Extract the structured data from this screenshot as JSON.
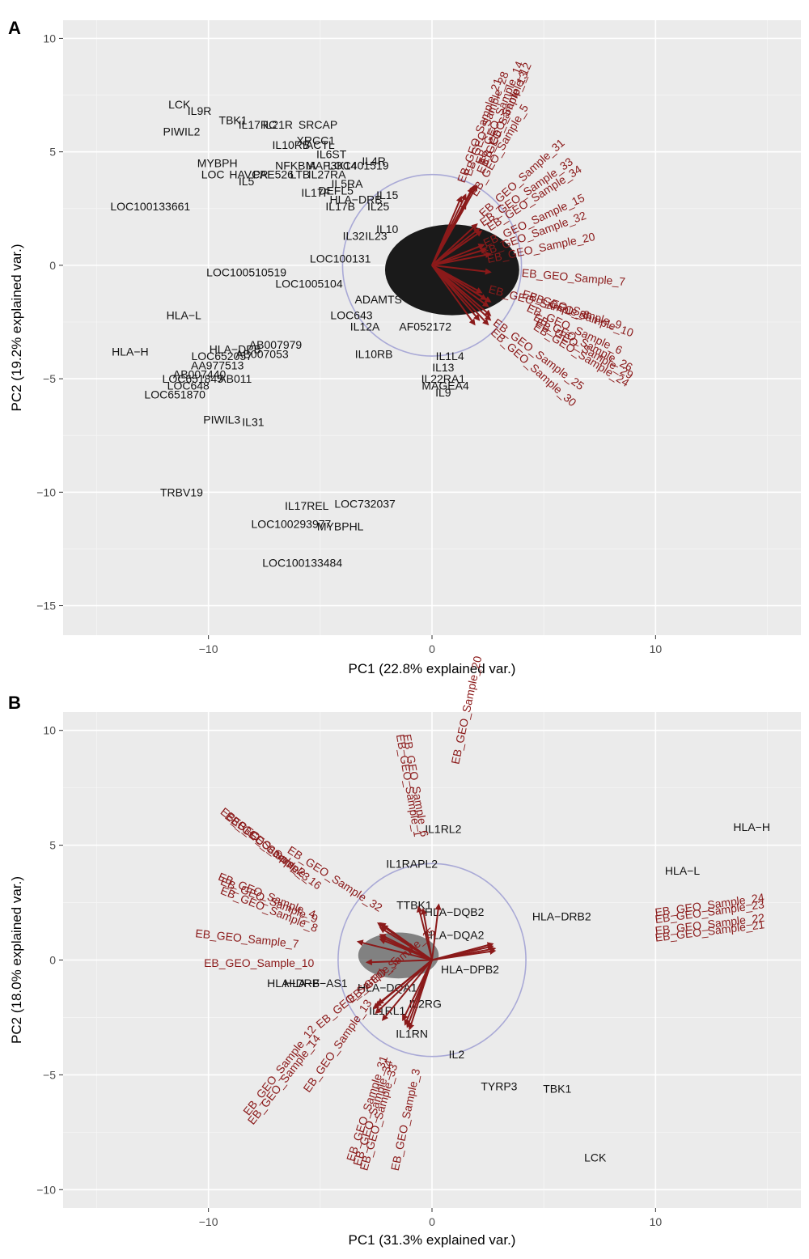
{
  "panels": [
    {
      "letter": "A",
      "chart_data": {
        "type": "scatter",
        "subtype": "pca-biplot",
        "xlabel": "PC1 (22.8% explained var.)",
        "ylabel": "PC2 (19.2% explained var.)",
        "xlim": [
          -16.5,
          16.5
        ],
        "ylim": [
          -16.3,
          10.8
        ],
        "xticks": [
          -10,
          0,
          10
        ],
        "yticks": [
          10,
          5,
          0,
          -5,
          -10,
          -15
        ],
        "grid": true,
        "circle": {
          "cx": 0,
          "cy": 0,
          "r": 4.0
        },
        "gene_labels": [
          {
            "label": "LCK",
            "x": -11.3,
            "y": 7.1
          },
          {
            "label": "IL9R",
            "x": -10.4,
            "y": 6.8
          },
          {
            "label": "TBK1",
            "x": -8.9,
            "y": 6.4
          },
          {
            "label": "IL17RC",
            "x": -7.8,
            "y": 6.2
          },
          {
            "label": "IL21R",
            "x": -6.9,
            "y": 6.2
          },
          {
            "label": "SRCAP",
            "x": -5.1,
            "y": 6.2
          },
          {
            "label": "PIWIL2",
            "x": -11.2,
            "y": 5.9
          },
          {
            "label": "XRCC1",
            "x": -5.2,
            "y": 5.5
          },
          {
            "label": "IL10RB",
            "x": -6.3,
            "y": 5.3
          },
          {
            "label": "ACTL",
            "x": -5.0,
            "y": 5.3
          },
          {
            "label": "IL6ST",
            "x": -4.5,
            "y": 4.9
          },
          {
            "label": "MYBPH",
            "x": -9.6,
            "y": 4.5
          },
          {
            "label": "NFKBIA",
            "x": -6.1,
            "y": 4.4
          },
          {
            "label": "MAP3K14",
            "x": -4.5,
            "y": 4.4
          },
          {
            "label": "LOC401519",
            "x": -3.3,
            "y": 4.4
          },
          {
            "label": "LOC",
            "x": -9.8,
            "y": 4.0
          },
          {
            "label": "HAVCR",
            "x": -8.2,
            "y": 4.0
          },
          {
            "label": "PAE526",
            "x": -7.1,
            "y": 4.0
          },
          {
            "label": "LTB",
            "x": -5.9,
            "y": 4.0
          },
          {
            "label": "IL27RA",
            "x": -4.7,
            "y": 4.0
          },
          {
            "label": "IL5",
            "x": -8.3,
            "y": 3.7
          },
          {
            "label": "IL5RA",
            "x": -3.8,
            "y": 3.6
          },
          {
            "label": "IL4R",
            "x": -2.6,
            "y": 4.6
          },
          {
            "label": "IL17F",
            "x": -5.2,
            "y": 3.2
          },
          {
            "label": "DEFL5",
            "x": -4.3,
            "y": 3.3
          },
          {
            "label": "IL15",
            "x": -2.0,
            "y": 3.1
          },
          {
            "label": "IL17B",
            "x": -4.1,
            "y": 2.6
          },
          {
            "label": "HLA-DRB",
            "x": -3.4,
            "y": 2.9
          },
          {
            "label": "IL25",
            "x": -2.4,
            "y": 2.6
          },
          {
            "label": "LOC100133661",
            "x": -12.6,
            "y": 2.6
          },
          {
            "label": "IL32",
            "x": -3.5,
            "y": 1.3
          },
          {
            "label": "IL23",
            "x": -2.5,
            "y": 1.3
          },
          {
            "label": "IL10",
            "x": -2.0,
            "y": 1.6
          },
          {
            "label": "LOC100131",
            "x": -4.1,
            "y": 0.3
          },
          {
            "label": "LOC100510519",
            "x": -8.3,
            "y": -0.3
          },
          {
            "label": "LOC1005104",
            "x": -5.5,
            "y": -0.8
          },
          {
            "label": "ADAMTS",
            "x": -2.4,
            "y": -1.5
          },
          {
            "label": "HLA-L",
            "x": -11.1,
            "y": -2.2
          },
          {
            "label": "LOC643",
            "x": -3.6,
            "y": -2.2
          },
          {
            "label": "IL12A",
            "x": -3.0,
            "y": -2.7
          },
          {
            "label": "AF052172",
            "x": -0.3,
            "y": -2.7
          },
          {
            "label": "AB007979",
            "x": -7.0,
            "y": -3.5
          },
          {
            "label": "HLA-DPB",
            "x": -8.8,
            "y": -3.7
          },
          {
            "label": "AB007053",
            "x": -7.6,
            "y": -3.9
          },
          {
            "label": "LOC652057",
            "x": -9.4,
            "y": -4.0
          },
          {
            "label": "HLA-H",
            "x": -13.5,
            "y": -3.8
          },
          {
            "label": "IL10RB",
            "x": -2.6,
            "y": -3.9
          },
          {
            "label": "AA977513",
            "x": -9.6,
            "y": -4.4
          },
          {
            "label": "AB007440",
            "x": -10.4,
            "y": -4.8
          },
          {
            "label": "LOC651845",
            "x": -10.7,
            "y": -5.0
          },
          {
            "label": "AB011",
            "x": -8.8,
            "y": -5.0
          },
          {
            "label": "LOC648",
            "x": -10.9,
            "y": -5.3
          },
          {
            "label": "LOC651870",
            "x": -11.5,
            "y": -5.7
          },
          {
            "label": "IL1L4",
            "x": 0.8,
            "y": -4.0
          },
          {
            "label": "IL13",
            "x": 0.5,
            "y": -4.5
          },
          {
            "label": "IL22RA1",
            "x": 0.5,
            "y": -5.0
          },
          {
            "label": "MAGEA4",
            "x": 0.6,
            "y": -5.3
          },
          {
            "label": "IL9",
            "x": 0.5,
            "y": -5.6
          },
          {
            "label": "PIWIL3",
            "x": -9.4,
            "y": -6.8
          },
          {
            "label": "IL31",
            "x": -8.0,
            "y": -6.9
          },
          {
            "label": "TRBV19",
            "x": -11.2,
            "y": -10.0
          },
          {
            "label": "LOC732037",
            "x": -3.0,
            "y": -10.5
          },
          {
            "label": "IL17REL",
            "x": -5.6,
            "y": -10.6
          },
          {
            "label": "LOC100293977",
            "x": -6.3,
            "y": -11.4
          },
          {
            "label": "MYBPHL",
            "x": -4.1,
            "y": -11.5
          },
          {
            "label": "LOC100133484",
            "x": -5.8,
            "y": -13.1
          }
        ],
        "samples": [
          {
            "name": "EB_GEO_Sample_21",
            "x": 1.3,
            "y": 3.0,
            "text_x": 1.45,
            "text_y": 3.6,
            "angle": -70
          },
          {
            "name": "EB_GEO_Sample_28",
            "x": 1.5,
            "y": 3.1,
            "text_x": 1.75,
            "text_y": 3.9,
            "angle": -70
          },
          {
            "name": "EB_GEO_Sample_14",
            "x": 1.9,
            "y": 3.5,
            "text_x": 2.25,
            "text_y": 4.4,
            "angle": -68
          },
          {
            "name": "EB_GEO_Sample_12",
            "x": 2.0,
            "y": 3.5,
            "text_x": 2.45,
            "text_y": 4.4,
            "angle": -66
          },
          {
            "name": "EB_GEO_Sample_13",
            "x": 1.8,
            "y": 3.4,
            "text_x": 2.3,
            "text_y": 4.0,
            "angle": -66
          },
          {
            "name": "EB_GEO_Sample_5",
            "x": 1.5,
            "y": 2.7,
            "text_x": 2.0,
            "text_y": 3.0,
            "angle": -60
          },
          {
            "name": "EB_GEO_Sample_31",
            "x": 2.0,
            "y": 1.8,
            "text_x": 2.3,
            "text_y": 2.1,
            "angle": -42
          },
          {
            "name": "EB_GEO_Sample_33",
            "x": 2.1,
            "y": 1.6,
            "text_x": 2.3,
            "text_y": 1.7,
            "angle": -35
          },
          {
            "name": "EB_GEO_Sample_34",
            "x": 2.2,
            "y": 1.5,
            "text_x": 2.6,
            "text_y": 1.5,
            "angle": -33
          },
          {
            "name": "EB_GEO_Sample_15",
            "x": 2.3,
            "y": 0.9,
            "text_x": 2.4,
            "text_y": 0.8,
            "angle": -25
          },
          {
            "name": "EB_GEO_Sample_32",
            "x": 2.4,
            "y": 0.7,
            "text_x": 2.3,
            "text_y": 0.4,
            "angle": -20
          },
          {
            "name": "EB_GEO_Sample_20",
            "x": 2.6,
            "y": 0.5,
            "text_x": 2.5,
            "text_y": 0.1,
            "angle": -12
          },
          {
            "name": "EB_GEO_Sample_7",
            "x": 2.6,
            "y": -0.3,
            "text_x": 4.0,
            "text_y": -0.5,
            "angle": 5
          },
          {
            "name": "EB_GEO_Sample_8",
            "x": 2.2,
            "y": -1.2,
            "text_x": 2.5,
            "text_y": -1.2,
            "angle": 15
          },
          {
            "name": "EB_GEO_Sample_9",
            "x": 2.4,
            "y": -1.5,
            "text_x": 4.0,
            "text_y": -1.4,
            "angle": 18
          },
          {
            "name": "EB_GEO_Sample_10",
            "x": 2.6,
            "y": -1.6,
            "text_x": 4.3,
            "text_y": -1.5,
            "angle": 20
          },
          {
            "name": "EB_GEO_Sample_6",
            "x": 2.5,
            "y": -1.8,
            "text_x": 4.2,
            "text_y": -2.0,
            "angle": 25
          },
          {
            "name": "EB_GEO_Sample_26",
            "x": 2.6,
            "y": -2.2,
            "text_x": 4.5,
            "text_y": -2.4,
            "angle": 28
          },
          {
            "name": "EB_GEO_Sample_29",
            "x": 2.6,
            "y": -2.4,
            "text_x": 4.6,
            "text_y": -2.6,
            "angle": 30
          },
          {
            "name": "EB_GEO_Sample_24",
            "x": 2.5,
            "y": -2.6,
            "text_x": 4.5,
            "text_y": -2.8,
            "angle": 32
          },
          {
            "name": "EB_GEO_Sample_25",
            "x": 2.1,
            "y": -2.4,
            "text_x": 2.7,
            "text_y": -2.6,
            "angle": 37
          },
          {
            "name": "EB_GEO_Sample_30",
            "x": 1.9,
            "y": -2.6,
            "text_x": 2.6,
            "text_y": -3.0,
            "angle": 42
          }
        ]
      }
    },
    {
      "letter": "B",
      "chart_data": {
        "type": "scatter",
        "subtype": "pca-biplot",
        "xlabel": "PC1 (31.3% explained var.)",
        "ylabel": "PC2 (18.0% explained var.)",
        "xlim": [
          -16.5,
          16.5
        ],
        "ylim": [
          -10.8,
          10.8
        ],
        "xticks": [
          -10,
          0,
          10
        ],
        "yticks": [
          10,
          5,
          0,
          -5,
          -10
        ],
        "grid": true,
        "circle": {
          "cx": 0,
          "cy": 0,
          "r": 4.2
        },
        "gene_labels": [
          {
            "label": "HLA-H",
            "x": 14.3,
            "y": 5.8
          },
          {
            "label": "HLA-L",
            "x": 11.2,
            "y": 3.9
          },
          {
            "label": "IL1RL2",
            "x": 0.5,
            "y": 5.7
          },
          {
            "label": "IL1RAPL2",
            "x": -0.9,
            "y": 4.2
          },
          {
            "label": "TTBK1",
            "x": -0.8,
            "y": 2.4
          },
          {
            "label": "HLA-DQB2",
            "x": 1.0,
            "y": 2.1
          },
          {
            "label": "HLA-DRB2",
            "x": 5.8,
            "y": 1.9
          },
          {
            "label": "HLA-DQA2",
            "x": 1.0,
            "y": 1.1
          },
          {
            "label": "HLA-DPB2",
            "x": 1.7,
            "y": -0.4
          },
          {
            "label": "HLA-F-AS1",
            "x": -5.2,
            "y": -1.0
          },
          {
            "label": "HLA-DRB",
            "x": -6.2,
            "y": -1.0
          },
          {
            "label": "HLA-DQA1",
            "x": -2.0,
            "y": -1.2
          },
          {
            "label": "IL1RL1",
            "x": -2.0,
            "y": -2.2
          },
          {
            "label": "IL2RG",
            "x": -0.3,
            "y": -1.9
          },
          {
            "label": "IL1RN",
            "x": -0.9,
            "y": -3.2
          },
          {
            "label": "IL2",
            "x": 1.1,
            "y": -4.1
          },
          {
            "label": "TYRP3",
            "x": 3.0,
            "y": -5.5
          },
          {
            "label": "TBK1",
            "x": 5.6,
            "y": -5.6
          },
          {
            "label": "LCK",
            "x": 7.3,
            "y": -8.6
          }
        ],
        "samples": [
          {
            "name": "EB_GEO_Sample_1",
            "x": -0.6,
            "y": 2.3,
            "text_x": -1.6,
            "text_y": 9.8,
            "angle": 80
          },
          {
            "name": "EB_GEO_Sample_6",
            "x": -0.4,
            "y": 2.2,
            "text_x": -1.3,
            "text_y": 9.8,
            "angle": 80
          },
          {
            "name": "EB_GEO_Sample_20",
            "x": 0.3,
            "y": 2.4,
            "text_x": 1.2,
            "text_y": 8.5,
            "angle": -78
          },
          {
            "name": "EB_GEO_Sample_2",
            "x": -2.4,
            "y": 1.6,
            "text_x": -9.5,
            "text_y": 6.4,
            "angle": 38
          },
          {
            "name": "EB_GEO_Sample_3",
            "x": -2.3,
            "y": 1.6,
            "text_x": -9.3,
            "text_y": 6.2,
            "angle": 38
          },
          {
            "name": "EB_GEO_Sample_16",
            "x": -2.2,
            "y": 1.5,
            "text_x": -9.0,
            "text_y": 6.0,
            "angle": 38
          },
          {
            "name": "EB_GEO_Sample_32",
            "x": -2.3,
            "y": 1.4,
            "text_x": -6.5,
            "text_y": 4.7,
            "angle": 33
          },
          {
            "name": "EB_GEO_Sample_4",
            "x": -2.3,
            "y": 1.1,
            "text_x": -9.6,
            "text_y": 3.5,
            "angle": 22
          },
          {
            "name": "EB_GEO_Sample_9",
            "x": -2.3,
            "y": 1.0,
            "text_x": -9.5,
            "text_y": 3.3,
            "angle": 22
          },
          {
            "name": "EB_GEO_Sample_8",
            "x": -2.3,
            "y": 0.9,
            "text_x": -9.5,
            "text_y": 2.9,
            "angle": 22
          },
          {
            "name": "EB_GEO_Sample_7",
            "x": -3.3,
            "y": 0.8,
            "text_x": -10.6,
            "text_y": 1.0,
            "angle": 6
          },
          {
            "name": "EB_GEO_Sample_10",
            "x": -2.9,
            "y": -0.1,
            "text_x": -10.2,
            "text_y": -0.3,
            "angle": 0
          },
          {
            "name": "EB_GEO_Sample_24",
            "x": 2.7,
            "y": 0.7,
            "text_x": 10.0,
            "text_y": 1.9,
            "angle": -8
          },
          {
            "name": "EB_GEO_Sample_23",
            "x": 2.7,
            "y": 0.6,
            "text_x": 10.0,
            "text_y": 1.6,
            "angle": -8
          },
          {
            "name": "EB_GEO_Sample_22",
            "x": 2.8,
            "y": 0.5,
            "text_x": 10.0,
            "text_y": 1.1,
            "angle": -7
          },
          {
            "name": "EB_GEO_Sample_21",
            "x": 2.8,
            "y": 0.4,
            "text_x": 10.0,
            "text_y": 0.8,
            "angle": -7
          },
          {
            "name": "EB_GEO_Sample_15",
            "x": -2.4,
            "y": -1.9,
            "text_x": -3.6,
            "text_y": -1.9,
            "angle": -40
          },
          {
            "name": "EB_GEO_Sample_5",
            "x": -2.5,
            "y": -2.0,
            "text_x": -5.0,
            "text_y": -3.0,
            "angle": -40
          },
          {
            "name": "EB_GEO_Sample_12",
            "x": -2.6,
            "y": -2.1,
            "text_x": -8.2,
            "text_y": -6.8,
            "angle": -52
          },
          {
            "name": "EB_GEO_Sample_14",
            "x": -2.5,
            "y": -2.3,
            "text_x": -8.0,
            "text_y": -7.2,
            "angle": -52
          },
          {
            "name": "EB_GEO_Sample_13",
            "x": -2.2,
            "y": -2.6,
            "text_x": -5.5,
            "text_y": -5.8,
            "angle": -55
          },
          {
            "name": "EB_GEO_Sample_31",
            "x": -1.3,
            "y": -2.6,
            "text_x": -3.5,
            "text_y": -8.8,
            "angle": -72
          },
          {
            "name": "EB_GEO_Sample_33",
            "x": -1.2,
            "y": -2.8,
            "text_x": -2.9,
            "text_y": -9.2,
            "angle": -74
          },
          {
            "name": "EB_GEO_Sample_34",
            "x": -1.1,
            "y": -2.9,
            "text_x": -3.2,
            "text_y": -9.0,
            "angle": -73
          },
          {
            "name": "EB_GEO_Sample_3",
            "x": -1.0,
            "y": -3.0,
            "text_x": -1.5,
            "text_y": -9.2,
            "angle": -78
          }
        ]
      }
    }
  ]
}
